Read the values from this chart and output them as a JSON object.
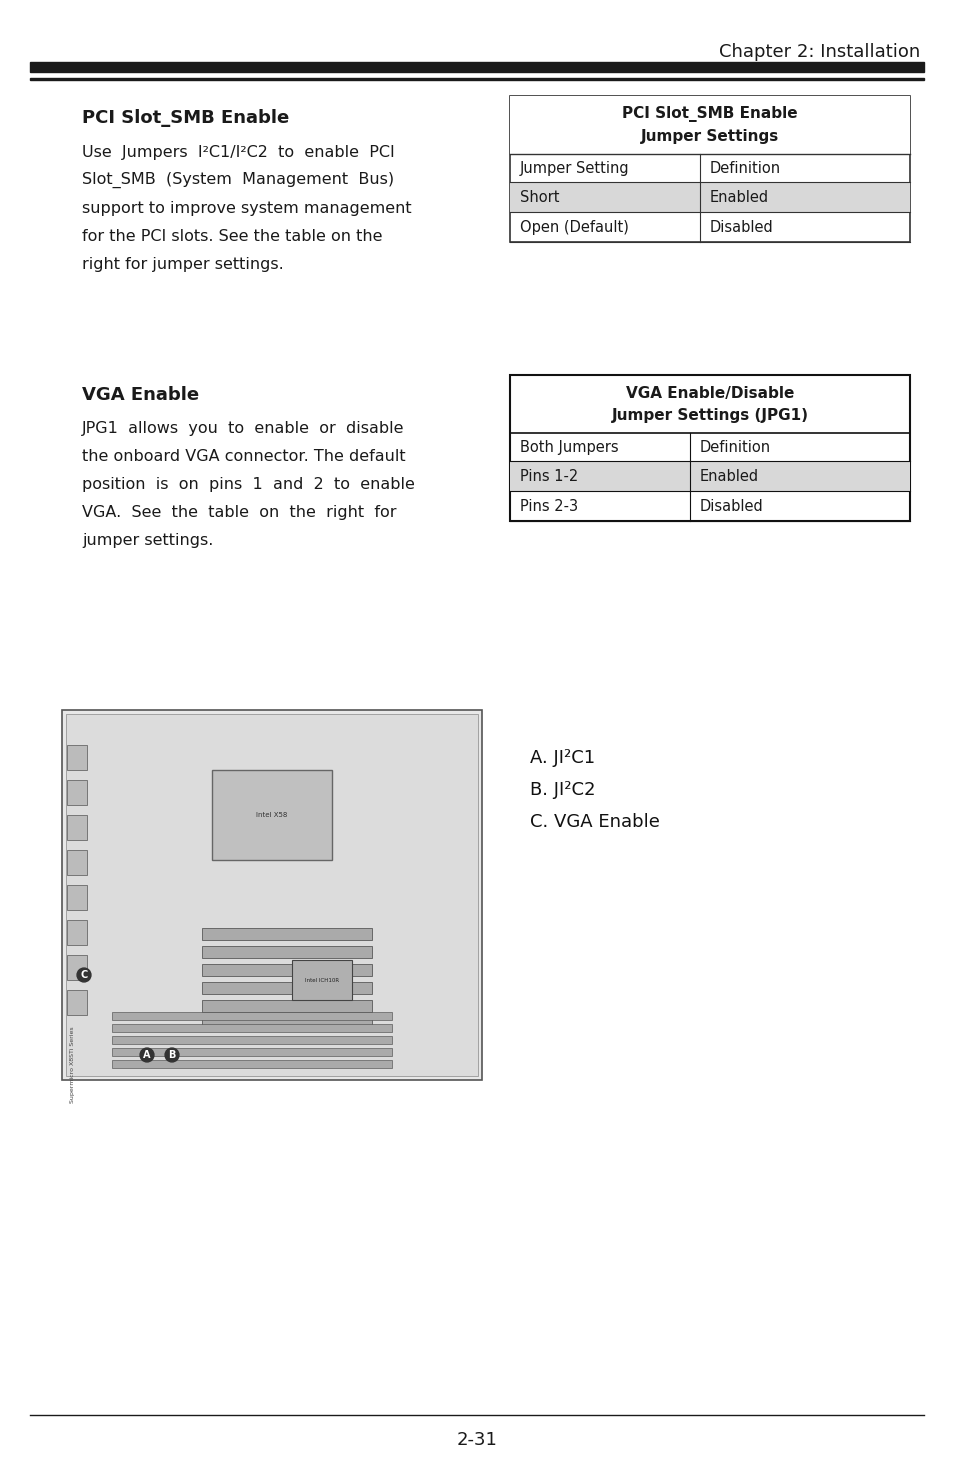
{
  "page_title": "Chapter 2: Installation",
  "page_number": "2-31",
  "bg_color": "#ffffff",
  "text_color": "#1a1a1a",
  "header_line_color": "#1a1a1a",
  "section1_title": "PCI Slot_SMB Enable",
  "section1_body": [
    "Use  Jumpers  I²C1/I²C2  to  enable  PCI",
    "Slot_SMB  (System  Management  Bus)",
    "support to improve system management",
    "for the PCI slots. See the table on the",
    "right for jumper settings."
  ],
  "table1_title_line1": "PCI Slot_SMB Enable",
  "table1_title_line2": "Jumper Settings",
  "table1_header_col1": "Jumper Setting",
  "table1_header_col2": "Definition",
  "table1_rows": [
    [
      "Short",
      "Enabled"
    ],
    [
      "Open (Default)",
      "Disabled"
    ]
  ],
  "table1_row_shading": [
    true,
    false
  ],
  "section2_title": "VGA Enable",
  "section2_body": [
    "JPG1  allows  you  to  enable  or  disable",
    "the onboard VGA connector. The default",
    "position  is  on  pins  1  and  2  to  enable",
    "VGA.  See  the  table  on  the  right  for",
    "jumper settings."
  ],
  "table2_title_line1": "VGA Enable/Disable",
  "table2_title_line2": "Jumper Settings (JPG1)",
  "table2_header_col1": "Both Jumpers",
  "table2_header_col2": "Definition",
  "table2_rows": [
    [
      "Pins 1-2",
      "Enabled"
    ],
    [
      "Pins 2-3",
      "Disabled"
    ]
  ],
  "table2_row_shading": [
    true,
    false
  ],
  "labels_title": "",
  "labels": [
    "A. JI²C1",
    "B. JI²C2",
    "C. VGA Enable"
  ],
  "shading_color": "#d8d8d8",
  "table_border_color": "#333333",
  "table_header_bg": "#ffffff"
}
